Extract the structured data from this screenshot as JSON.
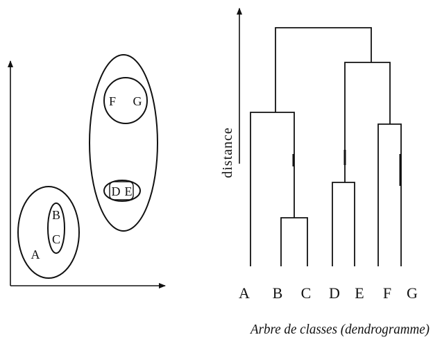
{
  "scatter": {
    "points": {
      "a": "A",
      "b": "B",
      "c": "C",
      "d": "D",
      "e": "E",
      "f": "F",
      "g": "G"
    }
  },
  "dendrogram": {
    "ylabel": "distance",
    "leaves": [
      "A",
      "B",
      "C",
      "D",
      "E",
      "F",
      "G"
    ],
    "caption": "Arbre de classes (dendrogramme)"
  }
}
